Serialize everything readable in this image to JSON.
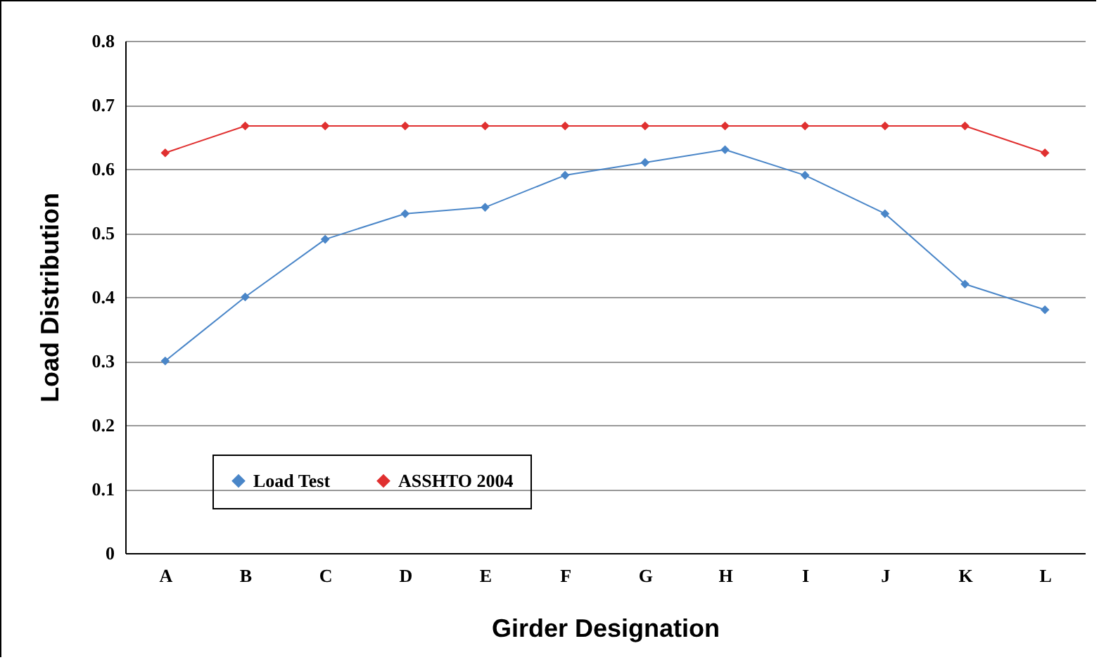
{
  "chart_data": {
    "type": "line",
    "xlabel": "Girder Designation",
    "ylabel": "Load Distribution",
    "categories": [
      "A",
      "B",
      "C",
      "D",
      "E",
      "F",
      "G",
      "H",
      "I",
      "J",
      "K",
      "L"
    ],
    "series": [
      {
        "name": "Load Test",
        "color": "#4a86c8",
        "values": [
          0.3,
          0.4,
          0.49,
          0.53,
          0.54,
          0.59,
          0.61,
          0.63,
          0.59,
          0.53,
          0.42,
          0.38
        ]
      },
      {
        "name": "ASSHTO 2004",
        "color": "#e03030",
        "values": [
          0.625,
          0.667,
          0.667,
          0.667,
          0.667,
          0.667,
          0.667,
          0.667,
          0.667,
          0.667,
          0.667,
          0.625
        ]
      }
    ],
    "ylim": [
      0,
      0.8
    ],
    "yticks": [
      0,
      0.1,
      0.2,
      0.3,
      0.4,
      0.5,
      0.6,
      0.7,
      0.8
    ],
    "grid": "y",
    "legend": "bottom left",
    "marker": "diamond",
    "line_style": "solid"
  }
}
